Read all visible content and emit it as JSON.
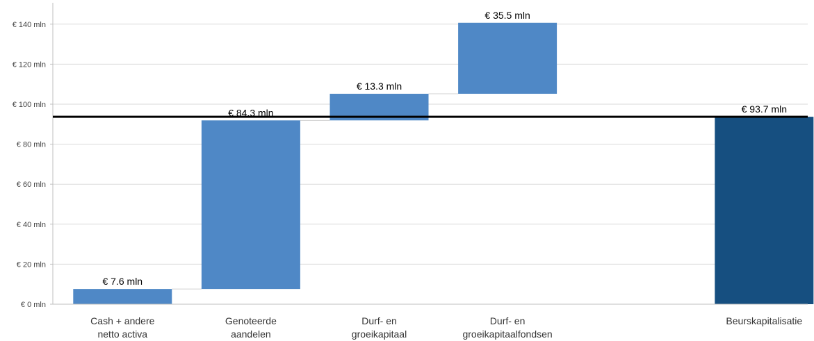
{
  "chart_data": {
    "type": "bar",
    "subtype": "waterfall",
    "categories": [
      [
        "Cash + andere",
        "netto activa"
      ],
      [
        "Genoteerde",
        "aandelen"
      ],
      [
        "Durf- en",
        "groeikapitaal"
      ],
      [
        "Durf- en",
        "groeikapitaalfondsen"
      ],
      [
        "",
        ""
      ],
      [
        "Beurskapitalisatie"
      ]
    ],
    "bars": [
      {
        "start": 0,
        "end": 7.6,
        "label": "€ 7.6 mln",
        "kind": "increment"
      },
      {
        "start": 7.6,
        "end": 91.9,
        "label": "€ 84.3 mln",
        "kind": "increment"
      },
      {
        "start": 91.9,
        "end": 105.2,
        "label": "€ 13.3 mln",
        "kind": "increment"
      },
      {
        "start": 105.2,
        "end": 140.7,
        "label": "€ 35.5 mln",
        "kind": "increment"
      },
      null,
      {
        "start": 0,
        "end": 93.7,
        "label": "€ 93.7 mln",
        "kind": "total"
      }
    ],
    "reference_line": 93.7,
    "ylim": [
      0,
      150
    ],
    "yticks": [
      0,
      20,
      40,
      60,
      80,
      100,
      120,
      140
    ],
    "ytick_labels": [
      "€ 0 mln",
      "€ 20 mln",
      "€ 40 mln",
      "€ 60 mln",
      "€ 80 mln",
      "€ 100 mln",
      "€ 120 mln",
      "€ 140 mln"
    ],
    "grid": true,
    "title": "",
    "xlabel": "",
    "ylabel": "",
    "colors": {
      "increment": "#4f88c6",
      "total": "#164f80",
      "reference_line": "#000000",
      "grid": "#d9d9d9"
    }
  }
}
